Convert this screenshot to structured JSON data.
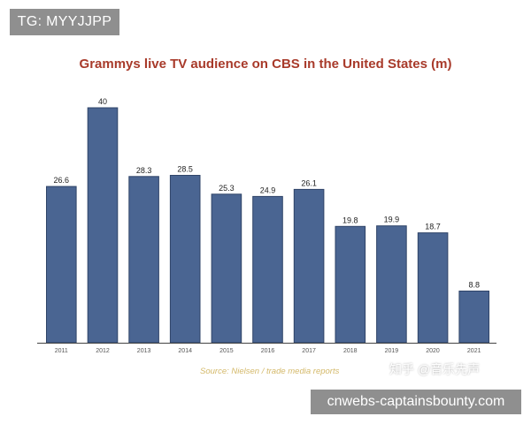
{
  "watermark": {
    "tag": "TG: MYYJJPP",
    "site": "cnwebs-captainsbounty.com",
    "zhihu": "知乎 @音乐先声"
  },
  "chart_data": {
    "type": "bar",
    "title": "Grammys live TV audience on CBS in the United States (m)",
    "categories": [
      "2011",
      "2012",
      "2013",
      "2014",
      "2015",
      "2016",
      "2017",
      "2018",
      "2019",
      "2020",
      "2021"
    ],
    "values": [
      26.6,
      40,
      28.3,
      28.5,
      25.3,
      24.9,
      26.1,
      19.8,
      19.9,
      18.7,
      8.8
    ],
    "value_labels": [
      "26.6",
      "40",
      "28.3",
      "28.5",
      "25.3",
      "24.9",
      "26.1",
      "19.8",
      "19.9",
      "18.7",
      "8.8"
    ],
    "xlabel": "",
    "ylabel": "",
    "ylim": [
      0,
      40
    ],
    "grid": false,
    "source": "Source: Nielsen / trade media reports",
    "colors": {
      "bar": "#4a6592",
      "bar_edge": "#2f4468",
      "title": "#a83a2a",
      "axis": "#555555"
    }
  }
}
